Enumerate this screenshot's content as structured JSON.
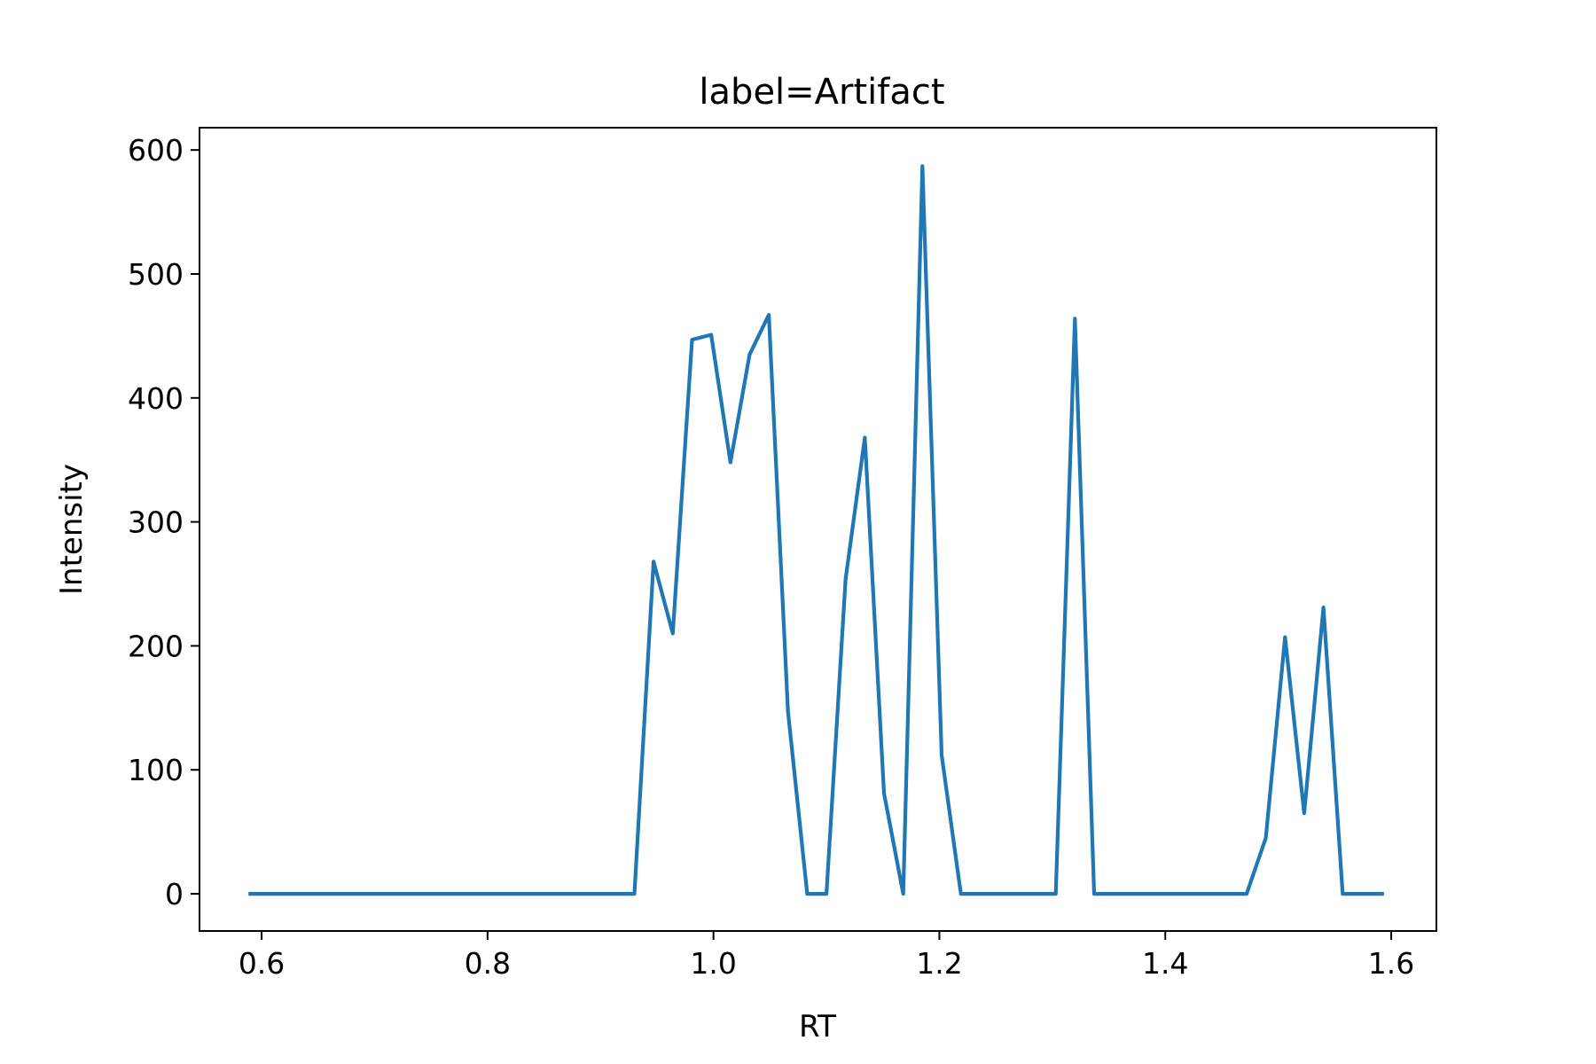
{
  "chart_data": {
    "type": "line",
    "title": "label=Artifact",
    "xlabel": "RT",
    "ylabel": "Intensity",
    "xlim": [
      0.545,
      1.64
    ],
    "ylim": [
      -30,
      618
    ],
    "xticks": [
      0.6,
      0.8,
      1.0,
      1.2,
      1.4,
      1.6
    ],
    "xtick_labels": [
      "0.6",
      "0.8",
      "1.0",
      "1.2",
      "1.4",
      "1.6"
    ],
    "yticks": [
      0,
      100,
      200,
      300,
      400,
      500,
      600
    ],
    "ytick_labels": [
      "0",
      "100",
      "200",
      "300",
      "400",
      "500",
      "600"
    ],
    "grid": false,
    "series": [
      {
        "color": "#1f77b4",
        "x": [
          0.59,
          0.93,
          0.947,
          0.964,
          0.981,
          0.998,
          1.015,
          1.032,
          1.049,
          1.066,
          1.083,
          1.1,
          1.117,
          1.134,
          1.151,
          1.168,
          1.185,
          1.202,
          1.219,
          1.236,
          1.303,
          1.32,
          1.337,
          1.354,
          1.472,
          1.489,
          1.506,
          1.523,
          1.54,
          1.557,
          1.592
        ],
        "y": [
          0,
          0,
          268,
          210,
          447,
          451,
          348,
          435,
          467,
          147,
          0,
          0,
          254,
          368,
          81,
          0,
          587,
          112,
          0,
          0,
          0,
          464,
          0,
          0,
          0,
          45,
          207,
          65,
          231,
          0,
          0
        ]
      }
    ]
  }
}
